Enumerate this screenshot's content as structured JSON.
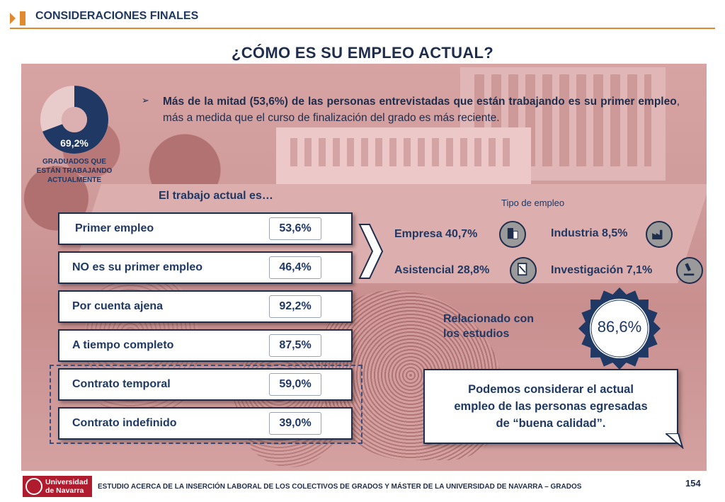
{
  "header": {
    "section_title": "CONSIDERACIONES FINALES",
    "accent_color": "#e2892f"
  },
  "title": "¿CÓMO ES SU EMPLEO ACTUAL?",
  "donut": {
    "value_label": "69,2%",
    "value": 69.2,
    "caption_line1": "GRADUADOS QUE",
    "caption_line2": "ESTÁN TRABAJANDO",
    "caption_line3": "ACTUALMENTE",
    "color": "#1f3864"
  },
  "bullet": {
    "bold1": "Más de la mitad (53,6%) de las personas entrevistadas que están trabajando es su primer empleo",
    "rest": ", más a medida que el curso de finalización del grado es más reciente."
  },
  "trabajo_heading": "El trabajo actual es…",
  "rows": [
    {
      "label": "Primer empleo",
      "value": "53,6%"
    },
    {
      "label": "NO es su primer empleo",
      "value": "46,4%"
    },
    {
      "label": "Por cuenta ajena",
      "value": "92,2%"
    },
    {
      "label": "A tiempo completo",
      "value": "87,5%"
    },
    {
      "label": "Contrato temporal",
      "value": "59,0%"
    },
    {
      "label": "Contrato indefinido",
      "value": "39,0%"
    }
  ],
  "tipo": {
    "heading": "Tipo de empleo",
    "empresa": "Empresa 40,7%",
    "industria": "Industria 8,5%",
    "asistencial": "Asistencial 28,8%",
    "investigacion": "Investigación 7,1%"
  },
  "relacionado": {
    "line1": "Relacionado con",
    "line2": "los estudios",
    "value": "86,6%"
  },
  "callout": {
    "line1": "Podemos considerar el actual",
    "line2": "empleo de las personas egresadas",
    "line3": "de “buena calidad”."
  },
  "footer": {
    "logo_line1": "Universidad",
    "logo_line2": "de Navarra",
    "text": "ESTUDIO ACERCA DE LA INSERCIÓN LABORAL DE LOS COLECTIVOS DE GRADOS Y MÁSTER DE LA UNIVERSIDAD DE NAVARRA – GRADOS",
    "page": "154"
  }
}
